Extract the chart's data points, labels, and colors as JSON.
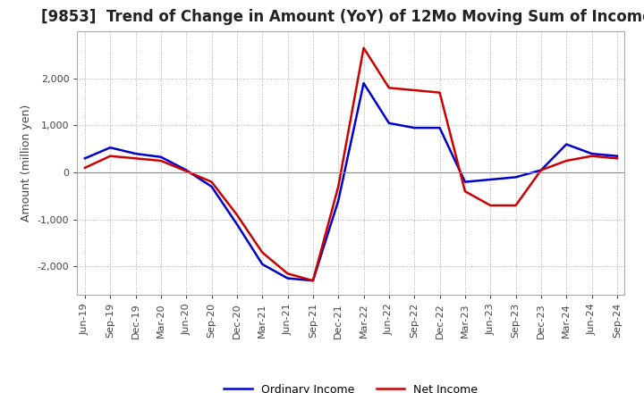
{
  "title": "[9853]  Trend of Change in Amount (YoY) of 12Mo Moving Sum of Incomes",
  "ylabel": "Amount (million yen)",
  "x_labels": [
    "Jun-19",
    "Sep-19",
    "Dec-19",
    "Mar-20",
    "Jun-20",
    "Sep-20",
    "Dec-20",
    "Mar-21",
    "Jun-21",
    "Sep-21",
    "Dec-21",
    "Mar-22",
    "Jun-22",
    "Sep-22",
    "Dec-22",
    "Mar-23",
    "Jun-23",
    "Sep-23",
    "Dec-23",
    "Mar-24",
    "Jun-24",
    "Sep-24"
  ],
  "ordinary_income": [
    300,
    530,
    400,
    330,
    50,
    -300,
    -1100,
    -1950,
    -2250,
    -2300,
    -600,
    1900,
    1050,
    950,
    950,
    -200,
    -150,
    -100,
    50,
    600,
    400,
    350
  ],
  "net_income": [
    100,
    350,
    300,
    250,
    30,
    -200,
    -900,
    -1700,
    -2150,
    -2300,
    -300,
    2650,
    1800,
    1750,
    1700,
    -400,
    -700,
    -700,
    50,
    250,
    350,
    300
  ],
  "ordinary_income_color": "#0000cc",
  "net_income_color": "#cc0000",
  "ylim": [
    -2600,
    3000
  ],
  "yticks": [
    -2000,
    -1000,
    0,
    1000,
    2000
  ],
  "grid_color": "#aaaaaa",
  "grid_style": "dotted",
  "background_color": "#ffffff",
  "legend_labels": [
    "Ordinary Income",
    "Net Income"
  ],
  "zero_line_color": "#888888",
  "spine_color": "#aaaaaa",
  "title_fontsize": 12,
  "axis_label_fontsize": 9,
  "tick_fontsize": 8
}
